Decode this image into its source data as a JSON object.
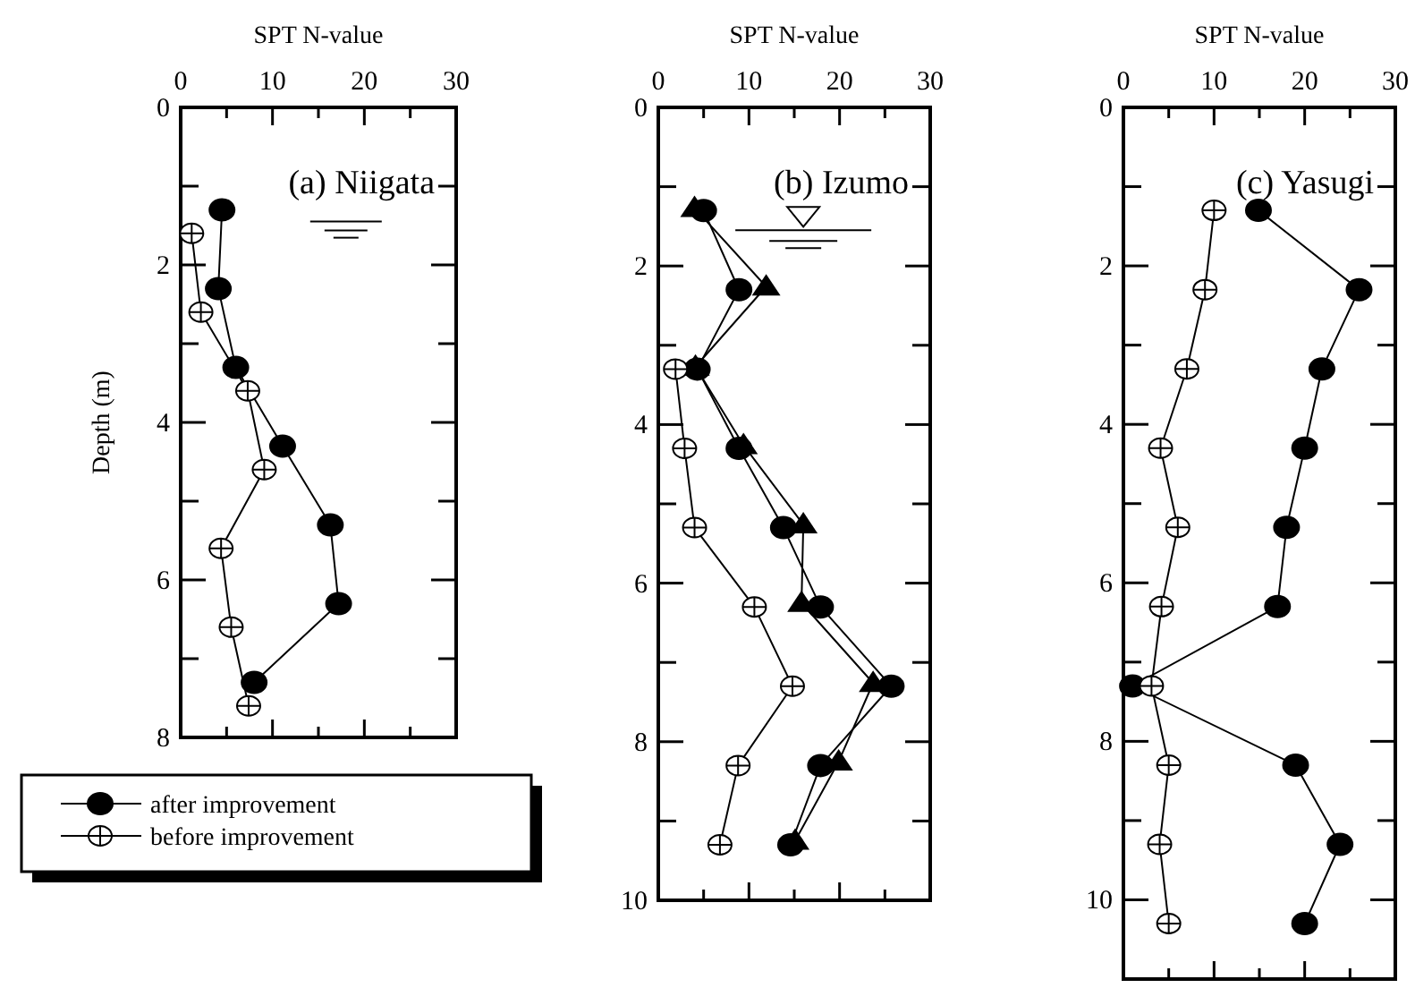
{
  "chart_data": [
    {
      "type": "line",
      "xlabel": "SPT N-value",
      "ylabel": "Depth (m)",
      "annotations": [
        "(a) Niigata"
      ],
      "xlim": [
        0,
        30
      ],
      "ylim": [
        8,
        0
      ],
      "xticks": [
        0,
        {
          "value": 5,
          "label": null
        },
        10,
        {
          "value": 15,
          "label": null
        },
        20,
        {
          "value": 25,
          "label": null
        },
        30
      ],
      "yticks": [
        0,
        {
          "value": 1,
          "label": null
        },
        2,
        {
          "value": 3,
          "label": null
        },
        4,
        {
          "value": 5,
          "label": null
        },
        6,
        {
          "value": 7,
          "label": null
        },
        8
      ],
      "legend": "bottom",
      "series": [
        {
          "name": "after improvement",
          "color": "#000000",
          "marker": "circle",
          "x": [
            4.5,
            4.1,
            6.0,
            11.1,
            16.3,
            17.2,
            8.0
          ],
          "values": [
            1.3,
            2.3,
            3.3,
            4.3,
            5.3,
            6.3,
            7.3
          ]
        },
        {
          "name": "before improvement",
          "color": "#000000",
          "marker": "cross",
          "x": [
            1.2,
            2.2,
            7.3,
            9.1,
            4.4,
            5.5,
            7.4
          ],
          "values": [
            1.6,
            2.6,
            3.6,
            4.6,
            5.6,
            6.6,
            7.6
          ]
        }
      ]
    },
    {
      "type": "line",
      "xlabel": "SPT N-value",
      "annotations": [
        "(b) Izumo"
      ],
      "xlim": [
        0,
        30
      ],
      "ylim": [
        10,
        0
      ],
      "xticks": [
        0,
        {
          "value": 5,
          "label": null
        },
        10,
        {
          "value": 15,
          "label": null
        },
        20,
        {
          "value": 25,
          "label": null
        },
        30
      ],
      "yticks": [
        0,
        {
          "value": 1,
          "label": null
        },
        2,
        {
          "value": 3,
          "label": null
        },
        4,
        {
          "value": 5,
          "label": null
        },
        6,
        {
          "value": 7,
          "label": null
        },
        8,
        {
          "value": 9,
          "label": null
        },
        10
      ],
      "series": [
        {
          "color": "#000000",
          "marker": "triangle",
          "x": [
            4.0,
            11.9,
            4.1,
            9.4,
            16.0,
            15.8,
            23.7,
            19.9,
            15.1
          ],
          "values": [
            1.27,
            2.26,
            3.27,
            4.26,
            5.26,
            6.25,
            7.26,
            8.25,
            9.25
          ]
        },
        {
          "color": "#000000",
          "marker": "circle",
          "x": [
            5.0,
            8.9,
            4.3,
            8.9,
            13.8,
            17.9,
            25.7,
            17.9,
            14.6
          ],
          "values": [
            1.3,
            2.3,
            3.3,
            4.3,
            5.3,
            6.3,
            7.3,
            8.3,
            9.3
          ]
        },
        {
          "color": "#000000",
          "marker": "cross",
          "x": [
            1.9,
            2.9,
            4.0,
            10.6,
            14.8,
            8.8,
            6.8
          ],
          "values": [
            3.3,
            4.3,
            5.3,
            6.3,
            7.3,
            8.3,
            9.3
          ]
        }
      ]
    },
    {
      "type": "line",
      "xlabel": "SPT N-value",
      "annotations": [
        "(c) Yasugi"
      ],
      "xlim": [
        0,
        30
      ],
      "ylim": [
        11,
        0
      ],
      "xticks": [
        0,
        {
          "value": 5,
          "label": null
        },
        10,
        {
          "value": 15,
          "label": null
        },
        20,
        {
          "value": 25,
          "label": null
        },
        30
      ],
      "yticks": [
        0,
        {
          "value": 1,
          "label": null
        },
        2,
        {
          "value": 3,
          "label": null
        },
        4,
        {
          "value": 5,
          "label": null
        },
        6,
        {
          "value": 7,
          "label": null
        },
        8,
        {
          "value": 9,
          "label": null
        },
        10,
        {
          "value": 11,
          "label": null
        }
      ],
      "series": [
        {
          "color": "#000000",
          "marker": "circle",
          "x": [
            14.9,
            26.0,
            21.9,
            20.0,
            18.0,
            17.0,
            1.0,
            19.0,
            23.9,
            20.0
          ],
          "values": [
            1.3,
            2.3,
            3.3,
            4.3,
            5.3,
            6.3,
            7.3,
            8.3,
            9.3,
            10.3
          ]
        },
        {
          "color": "#000000",
          "marker": "cross",
          "x": [
            10.0,
            9.0,
            7.0,
            4.1,
            6.0,
            4.2,
            3.1,
            5.0,
            4.0,
            5.0
          ],
          "values": [
            1.3,
            2.3,
            3.3,
            4.3,
            5.3,
            6.3,
            7.3,
            8.3,
            9.3,
            10.3
          ]
        }
      ]
    }
  ]
}
